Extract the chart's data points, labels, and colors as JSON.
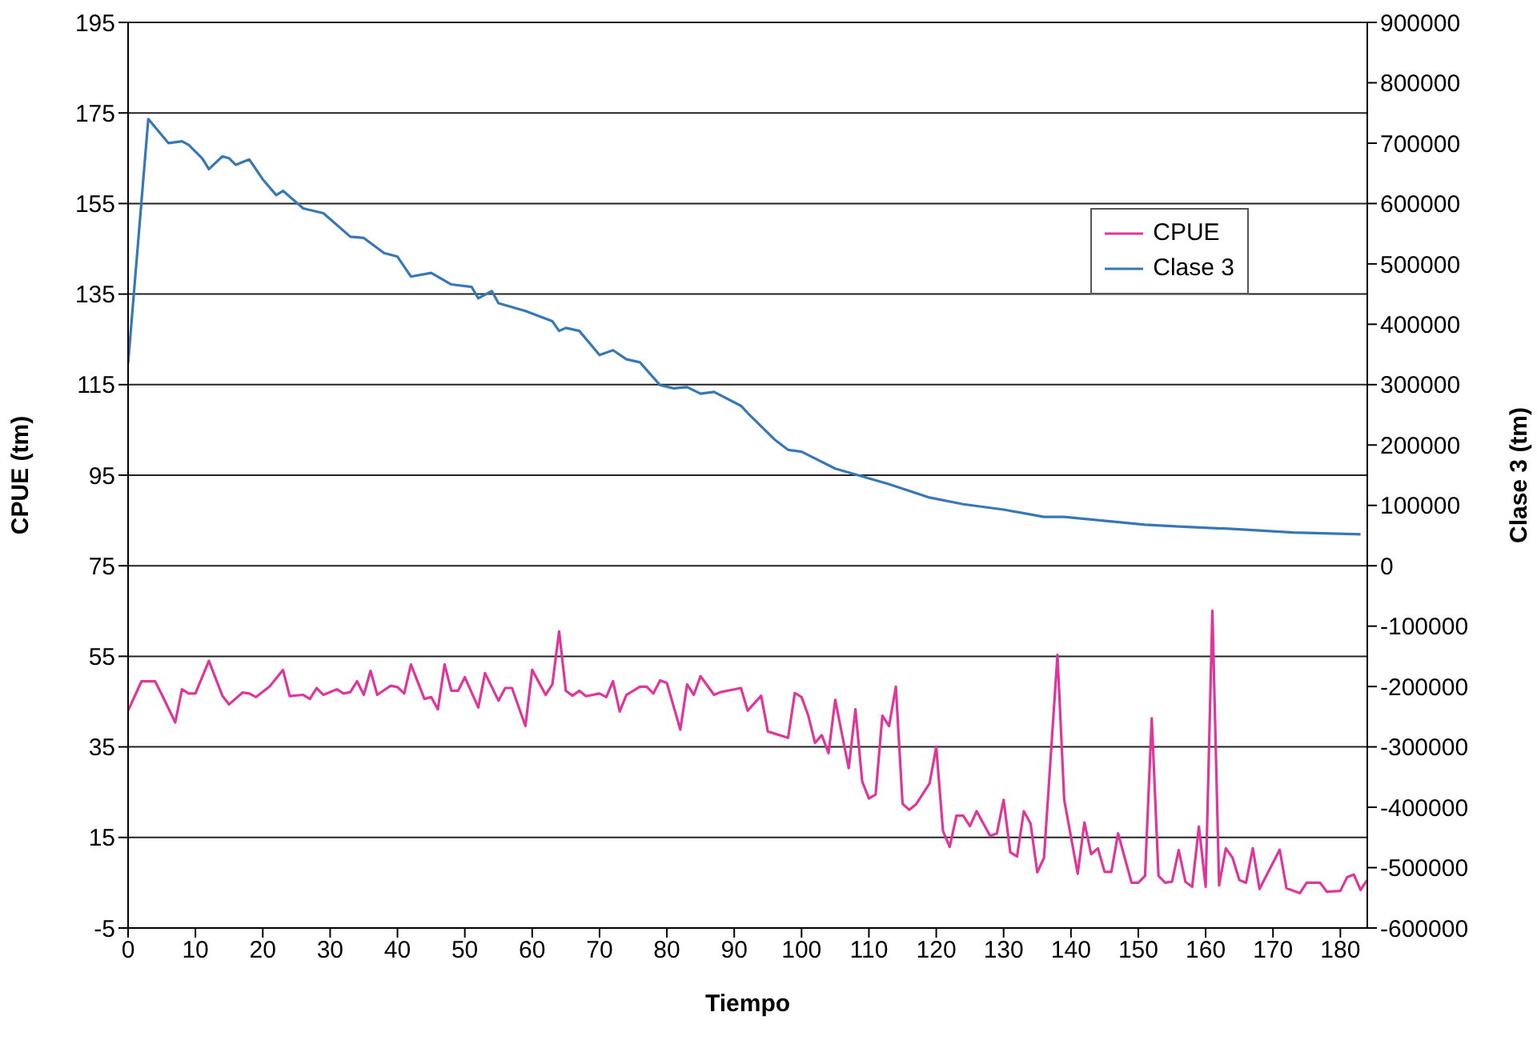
{
  "chart_data": {
    "type": "line",
    "xlabel": "Tiempo",
    "ylabel": "CPUE (tm)",
    "y2label": "Clase 3 (tm)",
    "xlim": [
      0,
      184
    ],
    "xticks": [
      0,
      10,
      20,
      30,
      40,
      50,
      60,
      70,
      80,
      90,
      100,
      110,
      120,
      130,
      140,
      150,
      160,
      170,
      180
    ],
    "ylim": [
      -5,
      195
    ],
    "yticks": [
      -5,
      15,
      35,
      55,
      75,
      95,
      115,
      135,
      155,
      175,
      195
    ],
    "y2lim": [
      -600000,
      900000
    ],
    "y2ticks": [
      -600000,
      -500000,
      -400000,
      -300000,
      -200000,
      -100000,
      0,
      100000,
      200000,
      300000,
      400000,
      500000,
      600000,
      700000,
      800000,
      900000
    ],
    "grid": "y",
    "legend": "top right",
    "marker": "none",
    "line_style": "solid",
    "series": [
      {
        "name": "CPUE",
        "color": "#e0359a",
        "x": [
          0,
          2,
          4,
          5,
          6,
          7,
          8,
          9,
          10,
          12,
          14,
          15,
          17,
          18,
          19,
          21,
          23,
          24,
          26,
          27,
          28,
          29,
          31,
          32,
          33,
          34,
          35,
          36,
          37,
          39,
          40,
          41,
          42,
          44,
          45,
          46,
          47,
          48,
          49,
          50,
          52,
          53,
          55,
          56,
          57,
          59,
          60,
          62,
          63,
          64,
          65,
          66,
          67,
          68,
          70,
          71,
          72,
          73,
          74,
          76,
          77,
          78,
          79,
          80,
          82,
          83,
          84,
          85,
          87,
          88,
          90,
          91,
          92,
          94,
          95,
          98,
          99,
          100,
          101,
          102,
          103,
          104,
          105,
          107,
          108,
          109,
          110,
          111,
          112,
          113,
          114,
          115,
          116,
          117,
          119,
          120,
          121,
          122,
          123,
          124,
          125,
          126,
          128,
          129,
          130,
          131,
          132,
          133,
          134,
          135,
          136,
          138,
          139,
          141,
          142,
          143,
          144,
          145,
          146,
          147,
          149,
          150,
          151,
          152,
          153,
          154,
          155,
          156,
          157,
          158,
          159,
          160,
          161,
          162,
          163,
          164,
          165,
          166,
          167,
          168,
          171,
          172,
          174,
          175,
          177,
          178,
          180,
          181,
          182,
          183,
          184
        ],
        "values": [
          43,
          49.5,
          49.5,
          46.6,
          43.5,
          40.4,
          47.7,
          46.8,
          46.8,
          54,
          46.3,
          44.4,
          47,
          46.8,
          46,
          48.3,
          52,
          46.2,
          46.5,
          45.6,
          48,
          46.5,
          47.7,
          46.8,
          47.1,
          49.5,
          46.5,
          51.8,
          46.5,
          48.5,
          48.2,
          46.8,
          53.2,
          45.6,
          46,
          43.3,
          53.2,
          47.4,
          47.4,
          50.4,
          43.7,
          51.3,
          45.2,
          48,
          48,
          39.6,
          52,
          46.5,
          48.8,
          60.5,
          47.4,
          46.3,
          47.4,
          46.2,
          46.8,
          46,
          49.5,
          42.8,
          46.5,
          48.3,
          48.3,
          46.8,
          49.7,
          49.1,
          38.8,
          48.8,
          46.5,
          50.6,
          46.5,
          47.1,
          47.7,
          48,
          43,
          46.3,
          38.4,
          37,
          46.9,
          46,
          41.9,
          35.9,
          37.6,
          33.6,
          45.4,
          30.3,
          43.3,
          27.4,
          23.6,
          24.5,
          41.9,
          39.6,
          48.3,
          22.4,
          21.1,
          22.3,
          26.9,
          35,
          16.4,
          12.9,
          19.8,
          19.8,
          17.5,
          20.8,
          15.3,
          15.9,
          23.3,
          11.7,
          10.8,
          20.8,
          18.1,
          7.3,
          10.5,
          55.3,
          23.3,
          7,
          18.3,
          11.3,
          12.6,
          7.4,
          7.4,
          15.9,
          5,
          5,
          6.5,
          41.3,
          6.5,
          5,
          5.2,
          12.2,
          5.2,
          4.1,
          17.4,
          4.1,
          65.1,
          4.4,
          12.6,
          10.5,
          5.6,
          5,
          12.6,
          3.6,
          12.3,
          3.8,
          2.7,
          5,
          5,
          3,
          3.2,
          6.2,
          6.8,
          3.4,
          5.6
        ]
      },
      {
        "name": "Clase 3",
        "color": "#3578b5",
        "axis": "y2",
        "x": [
          0,
          3,
          6,
          8,
          9,
          11,
          12,
          14,
          15,
          16,
          18,
          20,
          22,
          23,
          26,
          29,
          33,
          35,
          38,
          40,
          42,
          45,
          48,
          51,
          52,
          54,
          55,
          59,
          63,
          64,
          65,
          67,
          70,
          72,
          74,
          76,
          79,
          81,
          83,
          85,
          87,
          91,
          92,
          96,
          98,
          100,
          105,
          109,
          113,
          119,
          124,
          130,
          136,
          139,
          151,
          156,
          164,
          173,
          183
        ],
        "values": [
          335000,
          740000,
          700000,
          703000,
          697000,
          675000,
          657000,
          678000,
          675000,
          664000,
          673000,
          640000,
          614000,
          621000,
          592000,
          584000,
          545000,
          543000,
          518000,
          512000,
          479000,
          485000,
          466000,
          462000,
          443000,
          455000,
          435000,
          422000,
          405000,
          389000,
          394000,
          389000,
          349000,
          357000,
          342000,
          337000,
          299000,
          294000,
          296000,
          285000,
          288000,
          265000,
          253000,
          209000,
          192000,
          189000,
          161000,
          148000,
          135000,
          113000,
          102000,
          93000,
          81000,
          81000,
          68000,
          65000,
          61000,
          55000,
          52000
        ]
      }
    ]
  }
}
